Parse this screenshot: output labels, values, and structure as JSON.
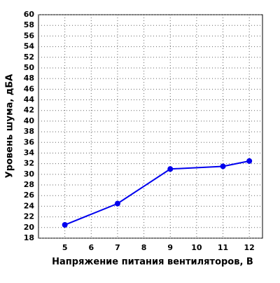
{
  "chart_data": {
    "type": "line",
    "xlabel": "Напряжение питания вентиляторов, В",
    "ylabel": "Уровень шума, дБА",
    "x": [
      5,
      7,
      9,
      11,
      12
    ],
    "series": [
      {
        "name": "Уровень шума",
        "color": "#0000ee",
        "values": [
          20.5,
          24.5,
          31,
          31.5,
          32.5
        ]
      }
    ],
    "xlim": [
      4,
      12.5
    ],
    "xticks": [
      5,
      6,
      7,
      8,
      9,
      10,
      11,
      12
    ],
    "ylim": [
      18,
      60
    ],
    "yticks": [
      18,
      20,
      22,
      24,
      26,
      28,
      30,
      32,
      34,
      36,
      38,
      40,
      42,
      44,
      46,
      48,
      50,
      52,
      54,
      56,
      58,
      60
    ],
    "grid": true
  }
}
